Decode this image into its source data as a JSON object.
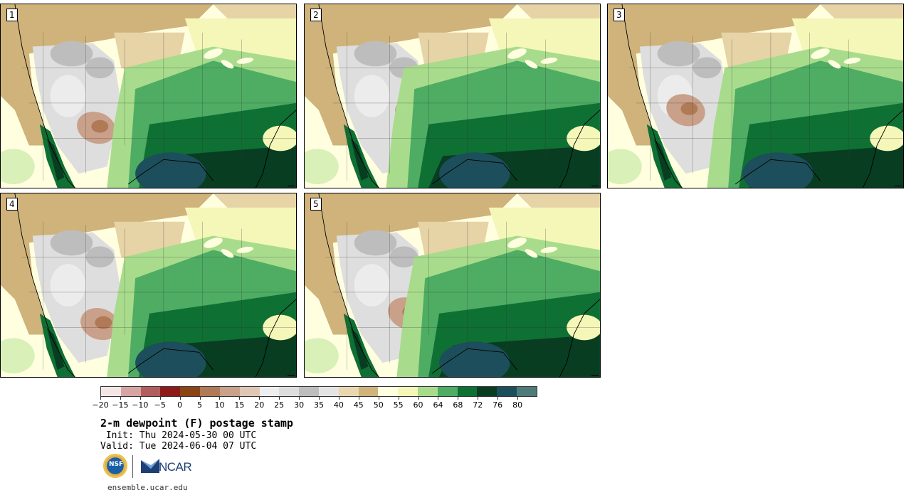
{
  "panels": [
    {
      "label": "1",
      "theme": "a"
    },
    {
      "label": "2",
      "theme": "b"
    },
    {
      "label": "3",
      "theme": "c"
    },
    {
      "label": "4",
      "theme": "d"
    },
    {
      "label": "5",
      "theme": "e"
    }
  ],
  "colorbar": {
    "colors": [
      "#f5e6e6",
      "#d7a3a3",
      "#b25e5e",
      "#8e1a1a",
      "#8b4513",
      "#b07a56",
      "#c9a089",
      "#e0c7b5",
      "#eeeeee",
      "#dddddd",
      "#bdbdbd",
      "#e4e4e4",
      "#ead7b0",
      "#cfb37a",
      "#ffffe0",
      "#f4f7b8",
      "#a8dc8c",
      "#4ead63",
      "#0f7034",
      "#083d22",
      "#1d4e5b",
      "#4e7a7a"
    ],
    "tick_labels": [
      "−20",
      "−15",
      "−10",
      "−5",
      "0",
      "5",
      "10",
      "15",
      "20",
      "25",
      "30",
      "35",
      "40",
      "45",
      "50",
      "55",
      "60",
      "64",
      "68",
      "72",
      "76",
      "80"
    ]
  },
  "title": "2-m dewpoint (F) postage stamp",
  "init": " Init: Thu 2024-05-30 00 UTC",
  "valid": "Valid: Tue 2024-06-04 07 UTC",
  "logos": {
    "nsf": "NSF",
    "ncar": "NCAR"
  },
  "site": "ensemble.ucar.edu"
}
